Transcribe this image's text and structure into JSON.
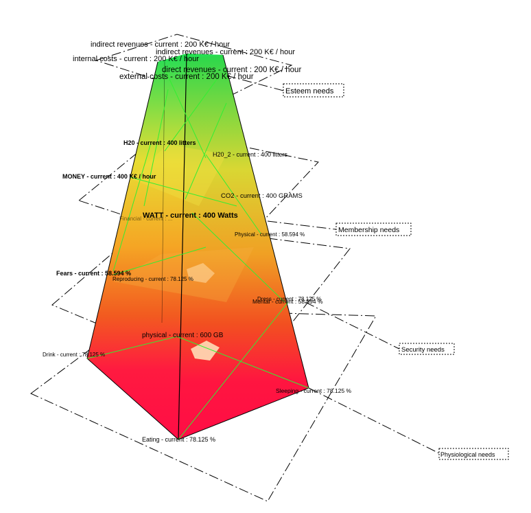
{
  "levels": [
    {
      "name": "Esteem needs"
    },
    {
      "name": "Membership needs"
    },
    {
      "name": "Security needs"
    },
    {
      "name": "Physiological needs"
    }
  ],
  "labels": {
    "indirect_revenues_1": "indirect revenues - current : 200 K€ / hour",
    "indirect_revenues_2": "indirect revenues - current : 200 K€ / hour",
    "internal_costs": "internal costs - current : 200 K€ / hour",
    "direct_revenues": "direct revenues - current : 200 K€ / hour",
    "external_costs": "external costs - current : 200 K€ / hour",
    "h20": "H20 - current : 400 litters",
    "h20_2": "H20_2 - current : 400 litters",
    "money": "MONEY - current : 400 K€ / hour",
    "co2": "CO2 - current : 400 GRAMS",
    "watt": "WATT - current : 400 Watts",
    "financial": "Financial - current : ...",
    "physical_membership": "Physical - current : 58.594 %",
    "fears": "Fears - current : 58.594 %",
    "reproducing": "Reproducing - current : 78.125 %",
    "dress": "Dress - current : 78.125 %",
    "mental": "Mental - current : 58.594 %",
    "physical_security": "physical - current : 600 GB",
    "drink": "Drink - current : 78.125 %",
    "sleeping": "Sleeping - current : 78.125 %",
    "eating": "Eating - current : 78.125 %"
  },
  "colors": {
    "top": "#22dd55",
    "upper_mid": "#e8dd33",
    "mid": "#f29a1e",
    "lower_mid": "#f25a20",
    "bottom": "#ff0d45",
    "edge_lines": "#33ee33",
    "highlight": "#ffe8c0"
  }
}
